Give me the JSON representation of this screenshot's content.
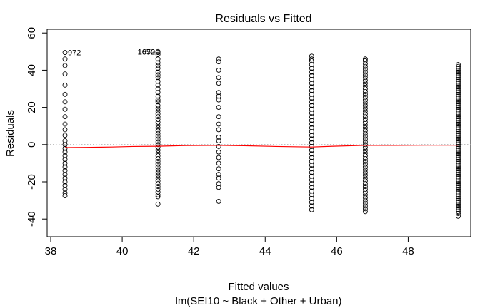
{
  "chart_data": {
    "type": "scatter",
    "title": "Residuals vs Fitted",
    "xlabel": "Fitted values",
    "xsublabel": "lm(SEI10 ~ Black + Other + Urban)",
    "ylabel": "Residuals",
    "xlim": [
      37.9,
      49.75
    ],
    "ylim": [
      -49.5,
      62
    ],
    "xticks": [
      38,
      40,
      42,
      44,
      46,
      48
    ],
    "yticks": [
      -40,
      -20,
      0,
      20,
      40,
      60
    ],
    "xtick_labels": [
      "38",
      "40",
      "42",
      "44",
      "46",
      "48"
    ],
    "ytick_labels": [
      "-40",
      "-20",
      "0",
      "20",
      "40",
      "60"
    ],
    "reference_line": {
      "y": 0,
      "style": "dotted",
      "color": "#aaaaaa"
    },
    "smoother_color": "#ff0000",
    "smoother": {
      "x": [
        38.4,
        39.0,
        39.7,
        40.3,
        41.0,
        41.8,
        42.7,
        43.4,
        44.3,
        45.3,
        45.9,
        46.8,
        47.6,
        48.5,
        49.4
      ],
      "y": [
        -1.6,
        -1.5,
        -1.3,
        -1.0,
        -0.9,
        -0.5,
        -0.4,
        -0.6,
        -1.0,
        -1.3,
        -0.9,
        -0.4,
        -0.4,
        -0.3,
        -0.3
      ]
    },
    "groups": [
      {
        "x": 38.4,
        "residuals": [
          49.5,
          46,
          42.5,
          38,
          32,
          27,
          23,
          19,
          15,
          11,
          8,
          5,
          2,
          0,
          -2,
          -4,
          -6,
          -8,
          -10,
          -12,
          -14,
          -16,
          -18,
          -20,
          -22,
          -24,
          -26,
          -27.5
        ]
      },
      {
        "x": 41.0,
        "residuals": [
          50,
          49.5,
          48.5,
          46,
          44,
          42.5,
          41,
          39,
          37.5,
          36,
          34,
          32,
          30,
          28,
          26,
          24,
          23,
          21,
          19.5,
          18,
          16.5,
          15,
          13.5,
          12,
          10.5,
          9,
          7.5,
          6,
          4.5,
          3,
          1.5,
          0,
          -1.5,
          -3,
          -4.5,
          -6,
          -7.5,
          -9,
          -10.5,
          -12,
          -13.5,
          -15,
          -16.5,
          -18,
          -19.5,
          -21,
          -22.5,
          -24,
          -25.5,
          -27,
          -28,
          -32
        ]
      },
      {
        "x": 42.7,
        "residuals": [
          46,
          44.5,
          40,
          36,
          33,
          28,
          26,
          24,
          20,
          15,
          11,
          8,
          4,
          2,
          -1,
          -4,
          -7,
          -10,
          -13,
          -16,
          -18,
          -21,
          -23,
          -30.5
        ]
      },
      {
        "x": 45.3,
        "residuals": [
          47.5,
          46,
          45,
          43,
          41,
          39,
          37,
          35,
          33,
          31,
          29,
          27,
          25,
          23,
          21,
          19,
          17,
          15,
          13,
          11,
          9,
          7,
          5,
          3,
          1,
          -1,
          -3,
          -5,
          -7,
          -9,
          -11,
          -13,
          -15,
          -17,
          -19,
          -21,
          -23,
          -25,
          -27,
          -29,
          -31,
          -33,
          -35
        ]
      },
      {
        "x": 46.8,
        "residuals": [
          46,
          45,
          43.5,
          42,
          40.5,
          39,
          37.5,
          36,
          34.5,
          33,
          31.5,
          30,
          28.5,
          27,
          25.5,
          24,
          22.5,
          21,
          19.5,
          18,
          16.5,
          15,
          13.5,
          12,
          10.5,
          9,
          7.5,
          6,
          4.5,
          3,
          1.5,
          0,
          -1.5,
          -3,
          -4.5,
          -6,
          -7.5,
          -9,
          -10.5,
          -12,
          -13.5,
          -15,
          -16.5,
          -18,
          -19.5,
          -21,
          -22.5,
          -24,
          -25.5,
          -27,
          -28.5,
          -30,
          -31.5,
          -33,
          -34.5,
          -36
        ]
      },
      {
        "x": 49.4,
        "residuals": [
          43,
          42,
          41,
          40,
          39,
          38,
          37,
          36,
          35,
          34,
          33,
          32,
          31,
          30,
          29,
          28,
          27,
          26,
          25,
          24,
          23,
          22,
          21,
          20,
          19,
          18,
          17,
          16,
          15,
          14,
          13,
          12,
          11,
          10,
          9,
          8,
          7,
          6,
          5,
          4,
          3,
          2,
          1,
          0,
          -1,
          -2,
          -3,
          -4,
          -5,
          -6,
          -7,
          -8,
          -9,
          -10,
          -11,
          -12,
          -13,
          -14,
          -15,
          -16,
          -17,
          -18,
          -19,
          -20,
          -21,
          -22,
          -23,
          -24,
          -25,
          -26,
          -27,
          -28,
          -29,
          -30,
          -31,
          -32,
          -33,
          -34,
          -35,
          -36,
          -37,
          -38.5
        ]
      }
    ],
    "annotations": [
      {
        "text": "972",
        "x": 38.4,
        "y": 49.5
      },
      {
        "text": "1672",
        "x": 41.0,
        "y": 50
      },
      {
        "text": "1650",
        "x": 41.0,
        "y": 50
      }
    ]
  }
}
